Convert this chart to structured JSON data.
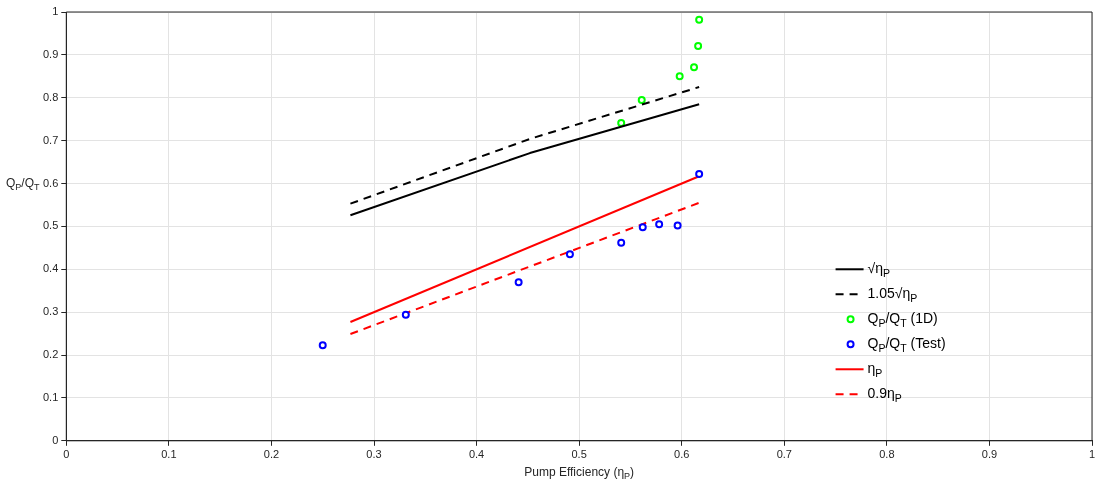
{
  "chart_data": {
    "type": "line",
    "xlabel": "Pump Efficiency (η$_{P}$)",
    "ylabel": "Q$_{P}$/Q$_{T}$",
    "xlim": [
      0,
      1
    ],
    "ylim": [
      0,
      1
    ],
    "xticks": [
      0,
      0.1,
      0.2,
      0.3,
      0.4,
      0.5,
      0.6,
      0.7,
      0.8,
      0.9,
      1
    ],
    "yticks": [
      0,
      0.1,
      0.2,
      0.3,
      0.4,
      0.5,
      0.6,
      0.7,
      0.8,
      0.9,
      1
    ],
    "grid": true,
    "legend": "right",
    "series": [
      {
        "name": "√η$_{P}$",
        "type": "line",
        "color": "#000000",
        "line_style": "solid",
        "x": [
          0.277,
          0.452,
          0.617
        ],
        "values": [
          0.526,
          0.671,
          0.785
        ]
      },
      {
        "name": "1.05√η$_{P}$",
        "type": "line",
        "color": "#000000",
        "line_style": "dashed",
        "x": [
          0.277,
          0.452,
          0.617
        ],
        "values": [
          0.553,
          0.704,
          0.825
        ]
      },
      {
        "name": "Q$_{P}$/Q$_{T}$ (1D)",
        "type": "scatter",
        "marker": "circle",
        "color": "#00ff00",
        "x": [
          0.541,
          0.561,
          0.598,
          0.612,
          0.616,
          0.617
        ],
        "values": [
          0.741,
          0.795,
          0.85,
          0.871,
          0.921,
          0.982
        ]
      },
      {
        "name": "Q$_{P}$/Q$_{T}$ (Test)",
        "type": "scatter",
        "marker": "circle",
        "color": "#0000ff",
        "x": [
          0.25,
          0.331,
          0.441,
          0.491,
          0.541,
          0.562,
          0.578,
          0.596,
          0.617
        ],
        "values": [
          0.223,
          0.294,
          0.37,
          0.435,
          0.462,
          0.498,
          0.505,
          0.502,
          0.622
        ]
      },
      {
        "name": "η$_{P}$",
        "type": "line",
        "color": "#ff0000",
        "line_style": "solid",
        "x": [
          0.277,
          0.617
        ],
        "values": [
          0.277,
          0.617
        ]
      },
      {
        "name": "0.9η$_{P}$",
        "type": "line",
        "color": "#ff0000",
        "line_style": "dashed",
        "x": [
          0.277,
          0.617
        ],
        "values": [
          0.249,
          0.555
        ]
      }
    ]
  }
}
